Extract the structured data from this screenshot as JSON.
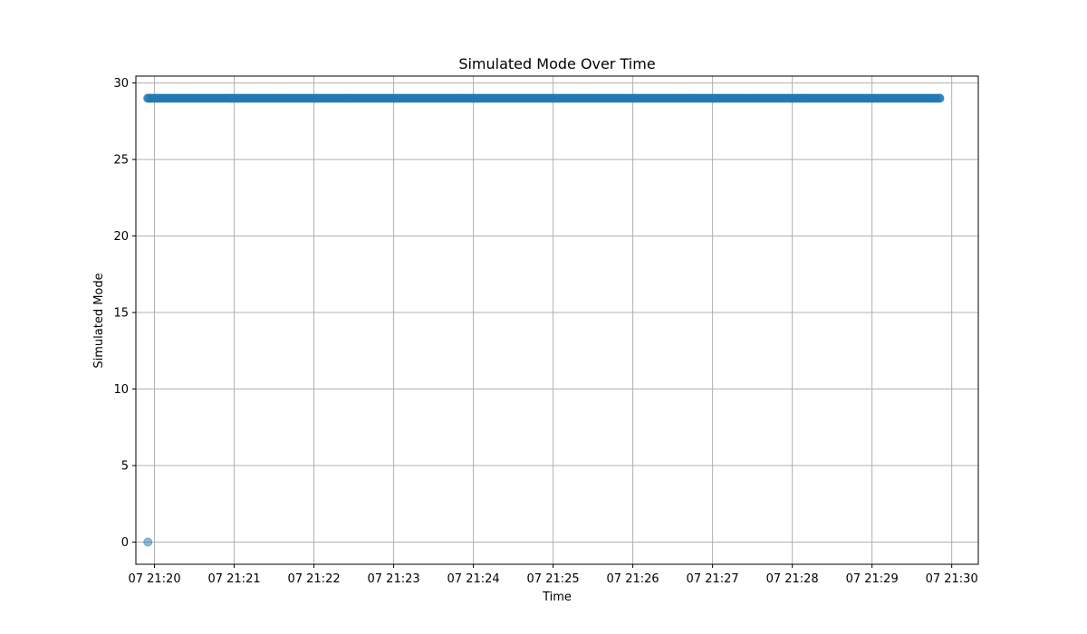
{
  "chart_data": {
    "type": "scatter",
    "title": "Simulated Mode Over Time",
    "xlabel": "Time",
    "ylabel": "Simulated Mode",
    "grid": true,
    "color": "#1f77b4",
    "marker_opacity": 0.5,
    "xlim": [
      "07 21:19:46",
      "07 21:30:20"
    ],
    "ylim": [
      -1.45,
      30.45
    ],
    "x_ticks": [
      {
        "label": "07 21:20",
        "value": "07 21:20:00"
      },
      {
        "label": "07 21:21",
        "value": "07 21:21:00"
      },
      {
        "label": "07 21:22",
        "value": "07 21:22:00"
      },
      {
        "label": "07 21:23",
        "value": "07 21:23:00"
      },
      {
        "label": "07 21:24",
        "value": "07 21:24:00"
      },
      {
        "label": "07 21:25",
        "value": "07 21:25:00"
      },
      {
        "label": "07 21:26",
        "value": "07 21:26:00"
      },
      {
        "label": "07 21:27",
        "value": "07 21:27:00"
      },
      {
        "label": "07 21:28",
        "value": "07 21:28:00"
      },
      {
        "label": "07 21:29",
        "value": "07 21:29:00"
      },
      {
        "label": "07 21:30",
        "value": "07 21:30:00"
      }
    ],
    "y_ticks": [
      {
        "label": "0",
        "value": 0
      },
      {
        "label": "5",
        "value": 5
      },
      {
        "label": "10",
        "value": 10
      },
      {
        "label": "15",
        "value": 15
      },
      {
        "label": "20",
        "value": 20
      },
      {
        "label": "25",
        "value": 25
      },
      {
        "label": "30",
        "value": 30
      }
    ],
    "series": [
      {
        "points": [
          {
            "x": "07 21:19:55",
            "y": 0
          },
          {
            "x": "07 21:19:55",
            "y": 29
          },
          {
            "x": "07 21:29:51",
            "y": 29
          }
        ],
        "dense_run": {
          "from": "07 21:19:55",
          "to": "07 21:29:51",
          "interval_seconds": 1,
          "y": 29
        }
      }
    ]
  }
}
